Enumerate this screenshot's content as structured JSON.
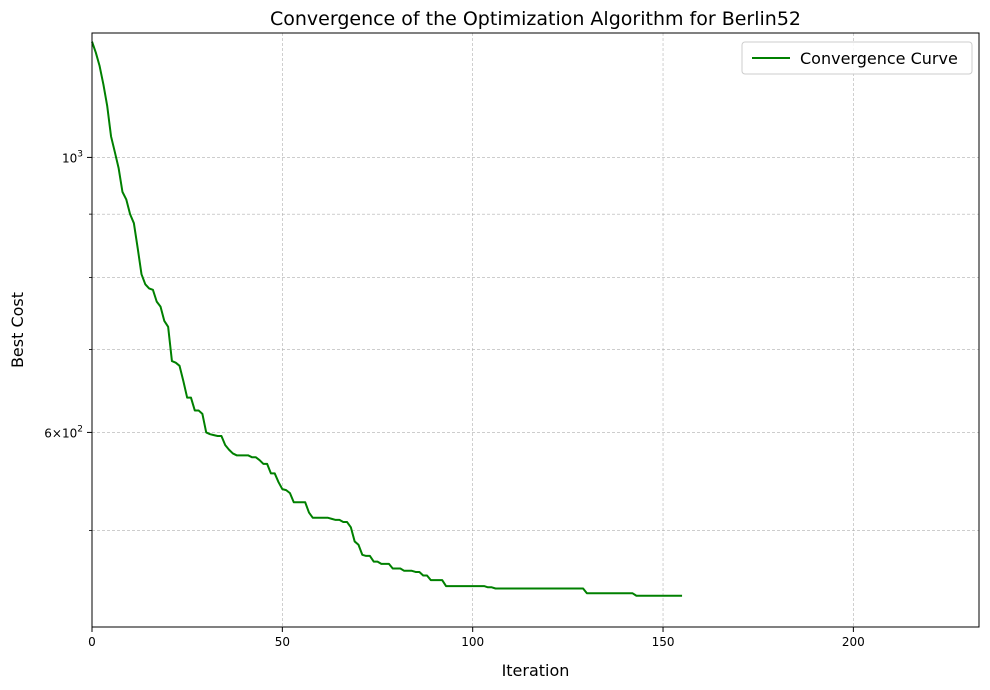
{
  "chart_data": {
    "type": "line",
    "title": "Convergence of the Optimization Algorithm for Berlin52",
    "xlabel": "Iteration",
    "ylabel": "Best Cost",
    "xlim": [
      0,
      233
    ],
    "ylim": [
      418,
      1260
    ],
    "yscale": "log",
    "grid": true,
    "legend_position": "top-right",
    "x_ticks": [
      0,
      50,
      100,
      150,
      200
    ],
    "y_major_ticks": [
      {
        "value": 1000,
        "base": "10",
        "exp": "3"
      },
      {
        "value": 600,
        "mant": "6",
        "base": "10",
        "exp": "2"
      }
    ],
    "y_minor_gridlines": [
      500,
      700,
      800,
      900
    ],
    "series": [
      {
        "name": "Convergence Curve",
        "color": "#008000",
        "x": [
          0,
          1,
          2,
          3,
          4,
          5,
          6,
          7,
          8,
          9,
          10,
          11,
          12,
          13,
          14,
          15,
          16,
          17,
          18,
          19,
          20,
          21,
          22,
          23,
          24,
          25,
          26,
          27,
          28,
          29,
          30,
          31,
          32,
          33,
          34,
          35,
          36,
          37,
          38,
          39,
          40,
          41,
          42,
          43,
          44,
          45,
          46,
          47,
          48,
          49,
          50,
          51,
          52,
          53,
          54,
          55,
          56,
          57,
          58,
          59,
          60,
          61,
          62,
          63,
          64,
          65,
          66,
          67,
          68,
          69,
          70,
          71,
          72,
          73,
          74,
          75,
          76,
          77,
          78,
          79,
          80,
          81,
          82,
          83,
          84,
          85,
          86,
          87,
          88,
          89,
          90,
          91,
          92,
          93,
          94,
          95,
          96,
          97,
          98,
          99,
          100,
          101,
          102,
          103,
          104,
          105,
          106,
          107,
          108,
          109,
          110,
          111,
          112,
          113,
          114,
          115,
          116,
          117,
          118,
          119,
          120,
          121,
          122,
          123,
          124,
          125,
          126,
          127,
          128,
          129,
          130,
          131,
          132,
          133,
          134,
          135,
          136,
          137,
          138,
          139,
          140,
          141,
          142,
          143,
          144,
          145,
          146,
          147,
          148,
          149,
          150,
          151,
          152,
          153,
          154,
          155
        ],
        "y": [
          1240,
          1215,
          1185,
          1145,
          1100,
          1040,
          1010,
          980,
          938,
          925,
          900,
          885,
          845,
          805,
          790,
          784,
          782,
          765,
          758,
          738,
          730,
          685,
          683,
          679,
          660,
          640,
          640,
          625,
          625,
          621,
          600,
          598,
          597,
          596,
          596,
          586,
          581,
          577,
          575,
          575,
          575,
          575,
          573,
          573,
          570,
          566,
          566,
          556,
          556,
          547,
          540,
          539,
          536,
          527,
          527,
          527,
          527,
          517,
          512,
          512,
          512,
          512,
          512,
          511,
          510,
          510,
          508,
          508,
          503,
          490,
          487,
          478,
          477,
          477,
          472,
          472,
          470,
          470,
          470,
          466,
          466,
          466,
          464,
          464,
          464,
          463,
          463,
          460,
          460,
          456,
          456,
          456,
          456,
          451,
          451,
          451,
          451,
          451,
          451,
          451,
          451,
          451,
          451,
          451,
          450,
          450,
          449,
          449,
          449,
          449,
          449,
          449,
          449,
          449,
          449,
          449,
          449,
          449,
          449,
          449,
          449,
          449,
          449,
          449,
          449,
          449,
          449,
          449,
          449,
          449,
          445,
          445,
          445,
          445,
          445,
          445,
          445,
          445,
          445,
          445,
          445,
          445,
          445,
          443,
          443,
          443,
          443,
          443,
          443,
          443,
          443,
          443,
          443,
          443,
          443,
          443
        ]
      }
    ]
  }
}
